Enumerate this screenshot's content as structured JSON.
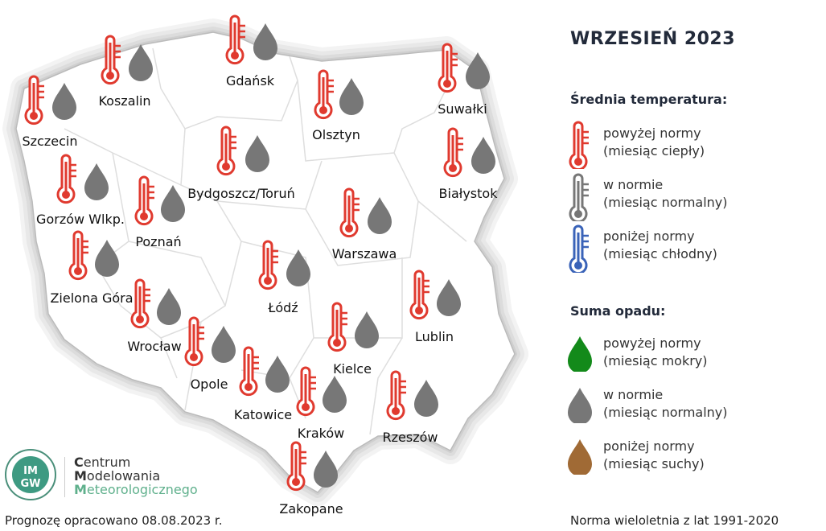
{
  "title": "WRZESIEŃ 2023",
  "legend": {
    "temperature_heading": "Średnia temperatura:",
    "temperature": [
      {
        "line1": "powyżej normy",
        "line2": "(miesiąc ciepły)",
        "color": "#e03a2f"
      },
      {
        "line1": "w normie",
        "line2": "(miesiąc normalny)",
        "color": "#777777"
      },
      {
        "line1": "poniżej normy",
        "line2": "(miesiąc chłodny)",
        "color": "#3a63b8"
      }
    ],
    "precipitation_heading": "Suma opadu:",
    "precipitation": [
      {
        "line1": "powyżej normy",
        "line2": "(miesiąc mokry)",
        "color": "#138a1a"
      },
      {
        "line1": "w normie",
        "line2": "(miesiąc normalny)",
        "color": "#777777"
      },
      {
        "line1": "poniżej normy",
        "line2": "(miesiąc suchy)",
        "color": "#a06a35"
      }
    ]
  },
  "cities": [
    {
      "name": "Szczecin",
      "temperature": "powyżej normy",
      "precipitation": "w normie"
    },
    {
      "name": "Koszalin",
      "temperature": "powyżej normy",
      "precipitation": "w normie"
    },
    {
      "name": "Gdańsk",
      "temperature": "powyżej normy",
      "precipitation": "w normie"
    },
    {
      "name": "Olsztyn",
      "temperature": "powyżej normy",
      "precipitation": "w normie"
    },
    {
      "name": "Suwałki",
      "temperature": "powyżej normy",
      "precipitation": "w normie"
    },
    {
      "name": "Gorzów Wlkp.",
      "temperature": "powyżej normy",
      "precipitation": "w normie"
    },
    {
      "name": "Bydgoszcz/Toruń",
      "temperature": "powyżej normy",
      "precipitation": "w normie"
    },
    {
      "name": "Białystok",
      "temperature": "powyżej normy",
      "precipitation": "w normie"
    },
    {
      "name": "Poznań",
      "temperature": "powyżej normy",
      "precipitation": "w normie"
    },
    {
      "name": "Warszawa",
      "temperature": "powyżej normy",
      "precipitation": "w normie"
    },
    {
      "name": "Zielona Góra",
      "temperature": "powyżej normy",
      "precipitation": "w normie"
    },
    {
      "name": "Łódź",
      "temperature": "powyżej normy",
      "precipitation": "w normie"
    },
    {
      "name": "Lublin",
      "temperature": "powyżej normy",
      "precipitation": "w normie"
    },
    {
      "name": "Wrocław",
      "temperature": "powyżej normy",
      "precipitation": "w normie"
    },
    {
      "name": "Kielce",
      "temperature": "powyżej normy",
      "precipitation": "w normie"
    },
    {
      "name": "Opole",
      "temperature": "powyżej normy",
      "precipitation": "w normie"
    },
    {
      "name": "Katowice",
      "temperature": "powyżej normy",
      "precipitation": "w normie"
    },
    {
      "name": "Kraków",
      "temperature": "powyżej normy",
      "precipitation": "w normie"
    },
    {
      "name": "Rzeszów",
      "temperature": "powyżej normy",
      "precipitation": "w normie"
    },
    {
      "name": "Zakopane",
      "temperature": "powyżej normy",
      "precipitation": "w normie"
    }
  ],
  "logo": {
    "line1_initial": "C",
    "line1_rest": "entrum",
    "line2_initial": "M",
    "line2_rest": "odelowania",
    "line3_initial": "M",
    "line3_rest": "eteorologicznego",
    "emblem_text": "IMGW"
  },
  "footer": {
    "left": "Prognozę opracowano 08.08.2023 r.",
    "right": "Norma wieloletnia z lat 1991-2020"
  }
}
